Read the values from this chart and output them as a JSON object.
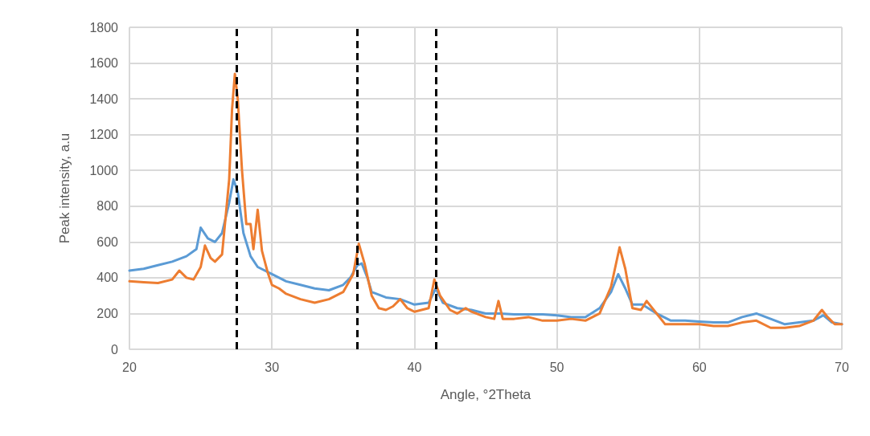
{
  "chart_data": {
    "type": "line",
    "xlabel": "Angle, °2Theta",
    "ylabel": "Peak intensity, a.u",
    "xlim": [
      20,
      70
    ],
    "xticks": [
      20,
      30,
      40,
      50,
      60,
      70
    ],
    "ylim": [
      0,
      1800
    ],
    "yticks": [
      0,
      200,
      400,
      600,
      800,
      1000,
      1200,
      1400,
      1600,
      1800
    ],
    "grid": true,
    "marker": "none",
    "line_style": "solid",
    "ref_lines": [
      {
        "axis": "x",
        "value": 27.5,
        "label": null,
        "color": "#000000",
        "line_style": "dashed"
      },
      {
        "axis": "x",
        "value": 36,
        "label": null,
        "color": "#000000",
        "line_style": "dashed"
      },
      {
        "axis": "x",
        "value": 41.5,
        "label": null,
        "color": "#000000",
        "line_style": "dashed"
      }
    ],
    "series": [
      {
        "color": "#5b9bd5",
        "x": [
          20,
          21,
          22,
          23,
          24,
          24.7,
          25,
          25.5,
          26,
          26.5,
          27,
          27.3,
          27.6,
          28,
          28.5,
          29,
          30,
          31,
          32,
          33,
          34,
          35,
          35.5,
          36,
          36.3,
          36.7,
          37,
          38,
          39,
          40,
          41,
          41.5,
          42,
          43,
          44,
          45,
          46,
          47,
          48,
          49,
          50,
          51,
          52,
          53,
          53.8,
          54.3,
          54.8,
          55.3,
          56,
          57,
          58,
          59,
          60,
          61,
          62,
          63,
          64,
          65,
          66,
          67,
          68,
          68.7,
          69.3,
          70
        ],
        "values": [
          440,
          450,
          470,
          490,
          520,
          560,
          680,
          620,
          600,
          650,
          820,
          950,
          880,
          650,
          520,
          460,
          420,
          380,
          360,
          340,
          330,
          360,
          400,
          470,
          480,
          400,
          320,
          290,
          280,
          250,
          260,
          340,
          260,
          230,
          220,
          200,
          200,
          195,
          195,
          195,
          190,
          180,
          180,
          230,
          320,
          420,
          340,
          250,
          250,
          200,
          160,
          160,
          155,
          150,
          150,
          180,
          200,
          170,
          140,
          150,
          160,
          190,
          150,
          140
        ]
      },
      {
        "color": "#ed7d31",
        "x": [
          20,
          21,
          22,
          23,
          23.5,
          24,
          24.5,
          25,
          25.3,
          25.7,
          26,
          26.5,
          27,
          27.2,
          27.4,
          27.6,
          27.9,
          28.2,
          28.5,
          28.7,
          29,
          29.3,
          29.7,
          30,
          30.5,
          31,
          32,
          33,
          34,
          35,
          35.7,
          36.1,
          36.5,
          37,
          37.5,
          38,
          38.5,
          39,
          39.5,
          40,
          41,
          41.4,
          41.8,
          42.5,
          43,
          43.6,
          44,
          45,
          45.6,
          45.9,
          46.2,
          47,
          48,
          49,
          50,
          51,
          52,
          53,
          53.8,
          54.4,
          54.8,
          55.3,
          55.9,
          56.3,
          57,
          57.6,
          58,
          59,
          60,
          61,
          62,
          63,
          64,
          65,
          66,
          67,
          68,
          68.6,
          69,
          69.5,
          70
        ],
        "values": [
          380,
          375,
          370,
          390,
          440,
          400,
          390,
          460,
          580,
          510,
          490,
          530,
          950,
          1340,
          1540,
          1400,
          1000,
          700,
          700,
          560,
          780,
          550,
          430,
          360,
          340,
          310,
          280,
          260,
          280,
          320,
          420,
          590,
          480,
          300,
          230,
          220,
          240,
          280,
          230,
          210,
          230,
          390,
          300,
          220,
          200,
          230,
          210,
          180,
          170,
          270,
          170,
          170,
          180,
          160,
          160,
          170,
          160,
          200,
          350,
          570,
          450,
          230,
          220,
          270,
          200,
          140,
          140,
          140,
          140,
          130,
          130,
          150,
          160,
          120,
          120,
          130,
          160,
          220,
          180,
          140,
          140
        ]
      }
    ]
  }
}
